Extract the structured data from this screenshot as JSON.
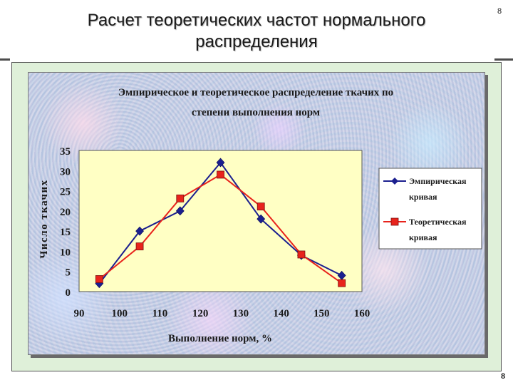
{
  "slide": {
    "title_line1": "Расчет теоретических частот нормального",
    "title_line2": "распределения",
    "page_number_top": "8",
    "page_number_bottom": "8"
  },
  "chart_data": {
    "type": "line",
    "title": "Эмпирическое и теоретическое распределение ткачих по степени выполнения норм",
    "title_line1": "Эмпирическое и теоретическое распределение ткачих по",
    "title_line2": "степени выполнения норм",
    "xlabel": "Выполнение норм, %",
    "ylabel": "Число ткачих",
    "xlim": [
      90,
      160
    ],
    "ylim": [
      0,
      35
    ],
    "x_ticks": [
      90,
      100,
      110,
      120,
      130,
      140,
      150,
      160
    ],
    "y_ticks": [
      0,
      5,
      10,
      15,
      20,
      25,
      30,
      35
    ],
    "grid": false,
    "legend_position": "right",
    "plot_background": "#ffffc4",
    "series": [
      {
        "name": "Эмпирическая кривая",
        "legend_line1": "Эмпирическая",
        "legend_line2": "кривая",
        "color": "#1b1f8f",
        "marker": "diamond",
        "x": [
          95,
          105,
          115,
          125,
          135,
          145,
          155
        ],
        "values": [
          2,
          15,
          20,
          32,
          18,
          9,
          4
        ]
      },
      {
        "name": "Теоретическая кривая",
        "legend_line1": "Теоретическая",
        "legend_line2": "кривая",
        "color": "#e8231c",
        "marker": "square",
        "x": [
          95,
          105,
          115,
          125,
          135,
          145,
          155
        ],
        "values": [
          3.1,
          11.2,
          23.1,
          29,
          21.1,
          9.2,
          2.1
        ]
      }
    ]
  }
}
